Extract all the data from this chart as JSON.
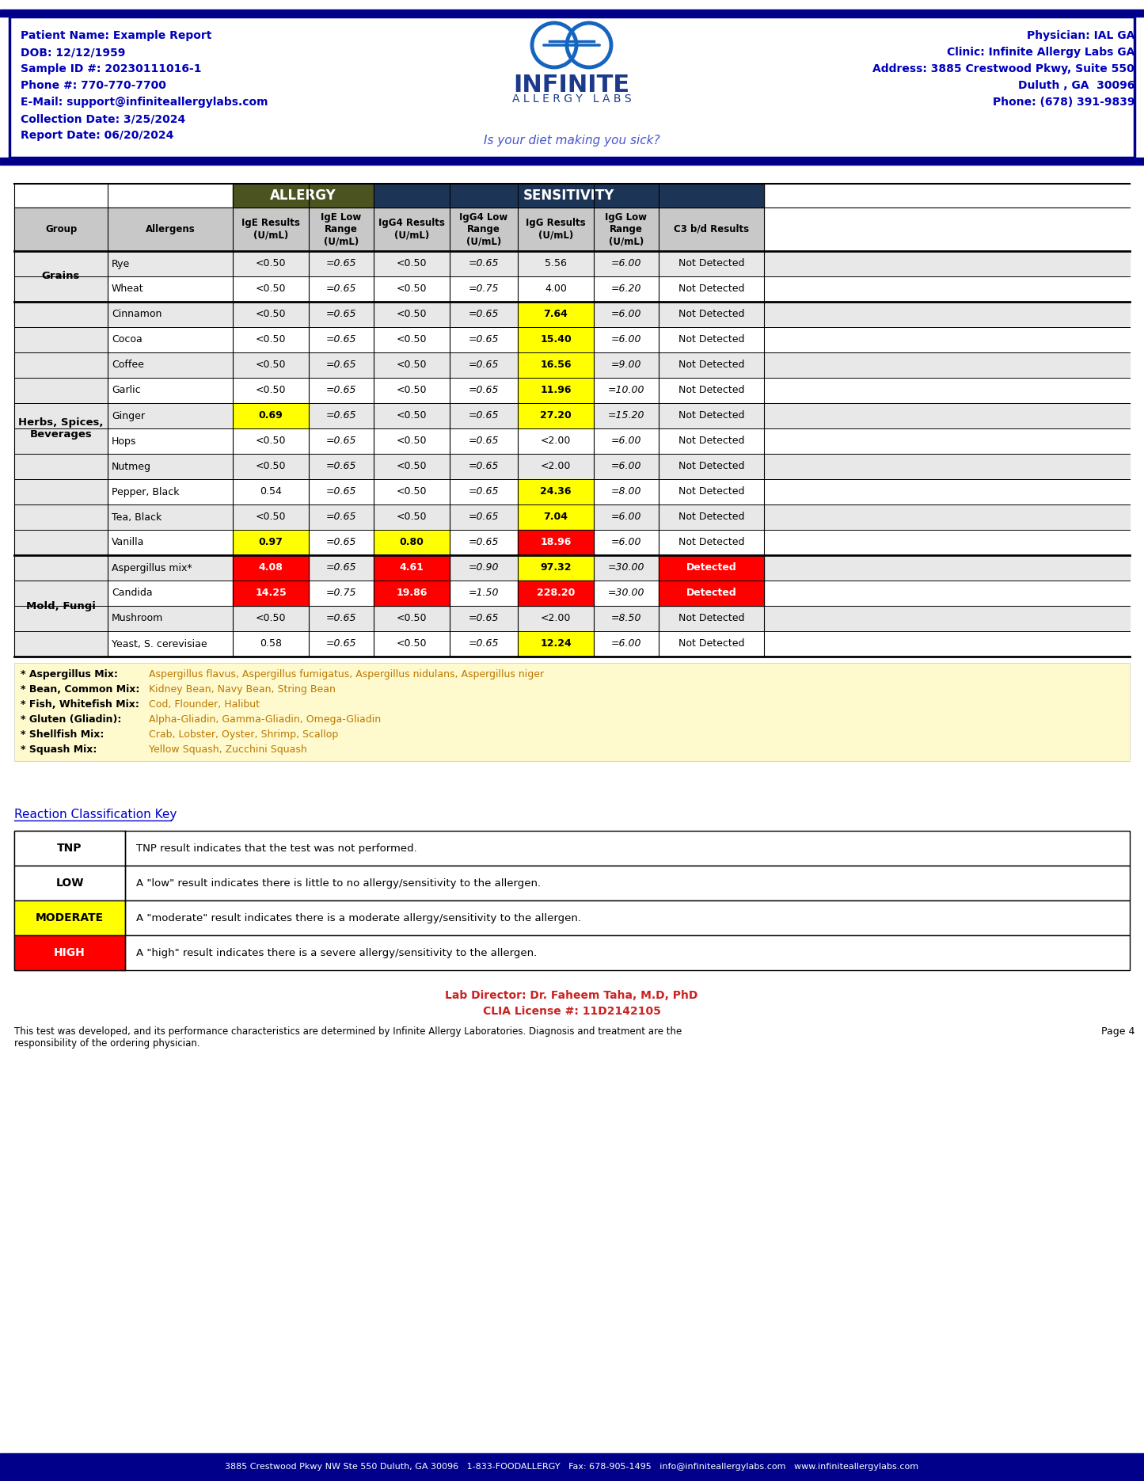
{
  "patient_info_left": [
    "Patient Name: Example Report",
    "DOB: 12/12/1959",
    "Sample ID #: 20230111016-1",
    "Phone #: 770-770-7700",
    "E-Mail: support@infiniteallergylabs.com",
    "Collection Date: 3/25/2024",
    "Report Date: 06/20/2024"
  ],
  "patient_info_right": [
    "Physician: IAL GA",
    "Clinic: Infinite Allergy Labs GA",
    "Address: 3885 Crestwood Pkwy, Suite 550",
    "Duluth , GA  30096",
    "Phone: (678) 391-9839"
  ],
  "tagline": "Is your diet making you sick?",
  "allergy_header_color": "#4B5320",
  "sensitivity_header_color": "#1C3557",
  "col_headers": [
    "Group",
    "Allergens",
    "IgE Results\n(U/mL)",
    "IgE Low\nRange\n(U/mL)",
    "IgG4 Results\n(U/mL)",
    "IgG4 Low\nRange\n(U/mL)",
    "IgG Results\n(U/mL)",
    "IgG Low\nRange\n(U/mL)",
    "C3 b/d Results"
  ],
  "rows": [
    {
      "group": "Grains",
      "allergen": "Rye",
      "ige": "<0.50",
      "ige_low": "=0.65",
      "igg4": "<0.50",
      "igg4_low": "=0.65",
      "igg": "5.56",
      "igg_low": "=6.00",
      "c3": "Not Detected",
      "ige_bg": "white",
      "igg4_bg": "white",
      "igg_bg": "white",
      "c3_bg": "white"
    },
    {
      "group": "Grains",
      "allergen": "Wheat",
      "ige": "<0.50",
      "ige_low": "=0.65",
      "igg4": "<0.50",
      "igg4_low": "=0.75",
      "igg": "4.00",
      "igg_low": "=6.20",
      "c3": "Not Detected",
      "ige_bg": "white",
      "igg4_bg": "white",
      "igg_bg": "white",
      "c3_bg": "white"
    },
    {
      "group": "Herbs, Spices,\nBeverages",
      "allergen": "Cinnamon",
      "ige": "<0.50",
      "ige_low": "=0.65",
      "igg4": "<0.50",
      "igg4_low": "=0.65",
      "igg": "7.64",
      "igg_low": "=6.00",
      "c3": "Not Detected",
      "ige_bg": "white",
      "igg4_bg": "white",
      "igg_bg": "#FFFF00",
      "c3_bg": "white"
    },
    {
      "group": "Herbs, Spices,\nBeverages",
      "allergen": "Cocoa",
      "ige": "<0.50",
      "ige_low": "=0.65",
      "igg4": "<0.50",
      "igg4_low": "=0.65",
      "igg": "15.40",
      "igg_low": "=6.00",
      "c3": "Not Detected",
      "ige_bg": "white",
      "igg4_bg": "white",
      "igg_bg": "#FFFF00",
      "c3_bg": "white"
    },
    {
      "group": "Herbs, Spices,\nBeverages",
      "allergen": "Coffee",
      "ige": "<0.50",
      "ige_low": "=0.65",
      "igg4": "<0.50",
      "igg4_low": "=0.65",
      "igg": "16.56",
      "igg_low": "=9.00",
      "c3": "Not Detected",
      "ige_bg": "white",
      "igg4_bg": "white",
      "igg_bg": "#FFFF00",
      "c3_bg": "white"
    },
    {
      "group": "Herbs, Spices,\nBeverages",
      "allergen": "Garlic",
      "ige": "<0.50",
      "ige_low": "=0.65",
      "igg4": "<0.50",
      "igg4_low": "=0.65",
      "igg": "11.96",
      "igg_low": "=10.00",
      "c3": "Not Detected",
      "ige_bg": "white",
      "igg4_bg": "white",
      "igg_bg": "#FFFF00",
      "c3_bg": "white"
    },
    {
      "group": "Herbs, Spices,\nBeverages",
      "allergen": "Ginger",
      "ige": "0.69",
      "ige_low": "=0.65",
      "igg4": "<0.50",
      "igg4_low": "=0.65",
      "igg": "27.20",
      "igg_low": "=15.20",
      "c3": "Not Detected",
      "ige_bg": "#FFFF00",
      "igg4_bg": "white",
      "igg_bg": "#FFFF00",
      "c3_bg": "white"
    },
    {
      "group": "Herbs, Spices,\nBeverages",
      "allergen": "Hops",
      "ige": "<0.50",
      "ige_low": "=0.65",
      "igg4": "<0.50",
      "igg4_low": "=0.65",
      "igg": "<2.00",
      "igg_low": "=6.00",
      "c3": "Not Detected",
      "ige_bg": "white",
      "igg4_bg": "white",
      "igg_bg": "white",
      "c3_bg": "white"
    },
    {
      "group": "Herbs, Spices,\nBeverages",
      "allergen": "Nutmeg",
      "ige": "<0.50",
      "ige_low": "=0.65",
      "igg4": "<0.50",
      "igg4_low": "=0.65",
      "igg": "<2.00",
      "igg_low": "=6.00",
      "c3": "Not Detected",
      "ige_bg": "white",
      "igg4_bg": "white",
      "igg_bg": "white",
      "c3_bg": "white"
    },
    {
      "group": "Herbs, Spices,\nBeverages",
      "allergen": "Pepper, Black",
      "ige": "0.54",
      "ige_low": "=0.65",
      "igg4": "<0.50",
      "igg4_low": "=0.65",
      "igg": "24.36",
      "igg_low": "=8.00",
      "c3": "Not Detected",
      "ige_bg": "white",
      "igg4_bg": "white",
      "igg_bg": "#FFFF00",
      "c3_bg": "white"
    },
    {
      "group": "Herbs, Spices,\nBeverages",
      "allergen": "Tea, Black",
      "ige": "<0.50",
      "ige_low": "=0.65",
      "igg4": "<0.50",
      "igg4_low": "=0.65",
      "igg": "7.04",
      "igg_low": "=6.00",
      "c3": "Not Detected",
      "ige_bg": "white",
      "igg4_bg": "white",
      "igg_bg": "#FFFF00",
      "c3_bg": "white"
    },
    {
      "group": "Herbs, Spices,\nBeverages",
      "allergen": "Vanilla",
      "ige": "0.97",
      "ige_low": "=0.65",
      "igg4": "0.80",
      "igg4_low": "=0.65",
      "igg": "18.96",
      "igg_low": "=6.00",
      "c3": "Not Detected",
      "ige_bg": "#FFFF00",
      "igg4_bg": "#FFFF00",
      "igg_bg": "#FF0000",
      "c3_bg": "white"
    },
    {
      "group": "Mold, Fungi",
      "allergen": "Aspergillus mix*",
      "ige": "4.08",
      "ige_low": "=0.65",
      "igg4": "4.61",
      "igg4_low": "=0.90",
      "igg": "97.32",
      "igg_low": "=30.00",
      "c3": "Detected",
      "ige_bg": "#FF0000",
      "igg4_bg": "#FF0000",
      "igg_bg": "#FFFF00",
      "c3_bg": "#FF0000"
    },
    {
      "group": "Mold, Fungi",
      "allergen": "Candida",
      "ige": "14.25",
      "ige_low": "=0.75",
      "igg4": "19.86",
      "igg4_low": "=1.50",
      "igg": "228.20",
      "igg_low": "=30.00",
      "c3": "Detected",
      "ige_bg": "#FF0000",
      "igg4_bg": "#FF0000",
      "igg_bg": "#FF0000",
      "c3_bg": "#FF0000"
    },
    {
      "group": "Mold, Fungi",
      "allergen": "Mushroom",
      "ige": "<0.50",
      "ige_low": "=0.65",
      "igg4": "<0.50",
      "igg4_low": "=0.65",
      "igg": "<2.00",
      "igg_low": "=8.50",
      "c3": "Not Detected",
      "ige_bg": "white",
      "igg4_bg": "white",
      "igg_bg": "white",
      "c3_bg": "white"
    },
    {
      "group": "Mold, Fungi",
      "allergen": "Yeast, S. cerevisiae",
      "ige": "0.58",
      "ige_low": "=0.65",
      "igg4": "<0.50",
      "igg4_low": "=0.65",
      "igg": "12.24",
      "igg_low": "=6.00",
      "c3": "Not Detected",
      "ige_bg": "white",
      "igg4_bg": "white",
      "igg_bg": "#FFFF00",
      "c3_bg": "white"
    }
  ],
  "footnotes": [
    [
      "* Aspergillus Mix:",
      "Aspergillus flavus, Aspergillus fumigatus, Aspergillus nidulans, Aspergillus niger"
    ],
    [
      "* Bean, Common Mix:",
      "Kidney Bean, Navy Bean, String Bean"
    ],
    [
      "* Fish, Whitefish Mix:",
      "Cod, Flounder, Halibut"
    ],
    [
      "* Gluten (Gliadin):",
      "Alpha-Gliadin, Gamma-Gliadin, Omega-Gliadin"
    ],
    [
      "* Shellfish Mix:",
      "Crab, Lobster, Oyster, Shrimp, Scallop"
    ],
    [
      "* Squash Mix:",
      "Yellow Squash, Zucchini Squash"
    ]
  ],
  "reaction_key_title": "Reaction Classification Key",
  "reaction_key_rows": [
    {
      "label": "TNP",
      "bg": "white",
      "text_color": "black",
      "description": "TNP result indicates that the test was not performed."
    },
    {
      "label": "LOW",
      "bg": "white",
      "text_color": "black",
      "description": "A \"low\" result indicates there is little to no allergy/sensitivity to the allergen."
    },
    {
      "label": "MODERATE",
      "bg": "#FFFF00",
      "text_color": "black",
      "description": "A \"moderate\" result indicates there is a moderate allergy/sensitivity to the allergen."
    },
    {
      "label": "HIGH",
      "bg": "#FF0000",
      "text_color": "white",
      "description": "A \"high\" result indicates there is a severe allergy/sensitivity to the allergen."
    }
  ],
  "footer_text1": "Lab Director: Dr. Faheem Taha, M.D, PhD",
  "footer_text2": "CLIA License #: 11D2142105",
  "footer_disclaimer": "This test was developed, and its performance characteristics are determined by Infinite Allergy Laboratories. Diagnosis and treatment are the\nresponsibility of the ordering physician.",
  "footer_bottom": "3885 Crestwood Pkwy NW Ste 550 Duluth, GA 30096   1-833-FOODALLERGY   Fax: 678-905-1495   info@infiniteallergylabs.com   www.infiniteallergylabs.com",
  "page_num": "Page 4"
}
